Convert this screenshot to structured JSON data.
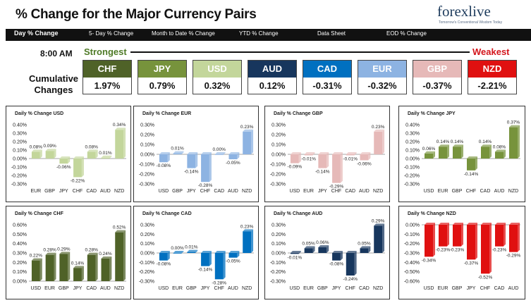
{
  "header": {
    "title": "% Change for the Major Currency Pairs",
    "logo_text": "forexlive",
    "logo_tagline": "Tomorrow's Conventional Wisdom Today"
  },
  "nav": {
    "items": [
      {
        "label": "Day % Change",
        "active": true
      },
      {
        "label": "5- Day % Change",
        "active": false
      },
      {
        "label": "Month to Date % Change",
        "active": false
      },
      {
        "label": "YTD % Change",
        "active": false
      },
      {
        "label": "Data Sheet",
        "active": false
      },
      {
        "label": "EOD % Change",
        "active": false
      }
    ]
  },
  "summary": {
    "time": "8:00 AM",
    "strongest_label": "Strongest",
    "weakest_label": "Weakest",
    "cumulative_label": "Cumulative Changes",
    "currencies": [
      {
        "code": "CHF",
        "value": "1.97%",
        "color": "#4f6228"
      },
      {
        "code": "JPY",
        "value": "0.79%",
        "color": "#77933c"
      },
      {
        "code": "USD",
        "value": "0.32%",
        "color": "#c3d69b"
      },
      {
        "code": "AUD",
        "value": "0.12%",
        "color": "#17365d"
      },
      {
        "code": "CAD",
        "value": "-0.31%",
        "color": "#0070c0"
      },
      {
        "code": "EUR",
        "value": "-0.32%",
        "color": "#8db3e2"
      },
      {
        "code": "GBP",
        "value": "-0.37%",
        "color": "#e6b9b8"
      },
      {
        "code": "NZD",
        "value": "-2.21%",
        "color": "#e01010"
      }
    ]
  },
  "chart_data": [
    {
      "type": "bar",
      "title": "Daily % Change USD",
      "categories": [
        "EUR",
        "GBP",
        "JPY",
        "CHF",
        "CAD",
        "AUD",
        "NZD"
      ],
      "values": [
        0.08,
        0.09,
        -0.06,
        -0.22,
        0.08,
        0.01,
        0.34
      ],
      "data_labels": [
        "0.08%",
        "0.09%",
        "-0.06%",
        "-0.22%",
        "0.08%",
        "0.01%",
        "0.34%"
      ],
      "ylim": [
        -0.3,
        0.4
      ],
      "yticks": [
        "0.40%",
        "0.30%",
        "0.20%",
        "0.10%",
        "0.00%",
        "-0.10%",
        "-0.20%",
        "-0.30%"
      ],
      "color": "#c3d69b"
    },
    {
      "type": "bar",
      "title": "Daily % Change EUR",
      "categories": [
        "USD",
        "GBP",
        "JPY",
        "CHF",
        "CAD",
        "AUD",
        "NZD"
      ],
      "values": [
        -0.08,
        0.01,
        -0.14,
        -0.28,
        0.0,
        -0.05,
        0.23
      ],
      "data_labels": [
        "-0.08%",
        "0.01%",
        "-0.14%",
        "-0.28%",
        "0.00%",
        "-0.05%",
        "0.23%"
      ],
      "ylim": [
        -0.3,
        0.3
      ],
      "yticks": [
        "0.30%",
        "0.20%",
        "0.10%",
        "0.00%",
        "-0.10%",
        "-0.20%",
        "-0.30%"
      ],
      "color": "#8db3e2"
    },
    {
      "type": "bar",
      "title": "Daily % Change GBP",
      "categories": [
        "USD",
        "EUR",
        "JPY",
        "CHF",
        "CAD",
        "AUD",
        "NZD"
      ],
      "values": [
        -0.09,
        -0.01,
        -0.14,
        -0.29,
        -0.01,
        -0.06,
        0.23
      ],
      "data_labels": [
        "-0.09%",
        "-0.01%",
        "-0.14%",
        "-0.29%",
        "-0.01%",
        "-0.06%",
        "0.23%"
      ],
      "ylim": [
        -0.3,
        0.3
      ],
      "yticks": [
        "0.30%",
        "0.20%",
        "0.10%",
        "0.00%",
        "-0.10%",
        "-0.20%",
        "-0.30%"
      ],
      "color": "#e6b9b8"
    },
    {
      "type": "bar",
      "title": "Daily % Change JPY",
      "categories": [
        "USD",
        "EUR",
        "GBP",
        "CHF",
        "CAD",
        "AUD",
        "NZD"
      ],
      "values": [
        0.06,
        0.14,
        0.14,
        -0.14,
        0.14,
        0.08,
        0.37
      ],
      "data_labels": [
        "0.06%",
        "0.14%",
        "0.14%",
        "-0.14%",
        "0.14%",
        "0.08%",
        "0.37%"
      ],
      "ylim": [
        -0.3,
        0.4
      ],
      "yticks": [
        "0.40%",
        "0.30%",
        "0.20%",
        "0.10%",
        "0.00%",
        "-0.10%",
        "-0.20%",
        "-0.30%"
      ],
      "color": "#77933c"
    },
    {
      "type": "bar",
      "title": "Daily % Change CHF",
      "categories": [
        "USD",
        "EUR",
        "GBP",
        "JPY",
        "CAD",
        "AUD",
        "NZD"
      ],
      "values": [
        0.22,
        0.28,
        0.29,
        0.14,
        0.28,
        0.24,
        0.52
      ],
      "data_labels": [
        "0.22%",
        "0.28%",
        "0.29%",
        "0.14%",
        "0.28%",
        "0.24%",
        "0.52%"
      ],
      "ylim": [
        0.0,
        0.6
      ],
      "yticks": [
        "0.60%",
        "0.50%",
        "0.40%",
        "0.30%",
        "0.20%",
        "0.10%",
        "0.00%"
      ],
      "color": "#4f6228"
    },
    {
      "type": "bar",
      "title": "Daily % Change CAD",
      "categories": [
        "USD",
        "EUR",
        "GBP",
        "JPY",
        "CHF",
        "AUD",
        "NZD"
      ],
      "values": [
        -0.08,
        0.0,
        0.01,
        -0.14,
        -0.28,
        -0.05,
        0.23
      ],
      "data_labels": [
        "-0.08%",
        "0.00%",
        "0.01%",
        "-0.14%",
        "-0.28%",
        "-0.05%",
        "0.23%"
      ],
      "ylim": [
        -0.3,
        0.3
      ],
      "yticks": [
        "0.30%",
        "0.20%",
        "0.10%",
        "0.00%",
        "-0.10%",
        "-0.20%",
        "-0.30%"
      ],
      "color": "#0070c0"
    },
    {
      "type": "bar",
      "title": "Daily % Change AUD",
      "categories": [
        "USD",
        "EUR",
        "GBP",
        "JPY",
        "CHF",
        "CAD",
        "NZD"
      ],
      "values": [
        -0.01,
        0.05,
        0.06,
        -0.08,
        -0.24,
        0.05,
        0.29
      ],
      "data_labels": [
        "-0.01%",
        "0.05%",
        "0.06%",
        "-0.08%",
        "-0.24%",
        "0.05%",
        "0.29%"
      ],
      "ylim": [
        -0.3,
        0.3
      ],
      "yticks": [
        "0.30%",
        "0.20%",
        "0.10%",
        "0.00%",
        "-0.10%",
        "-0.20%",
        "-0.30%"
      ],
      "color": "#17365d"
    },
    {
      "type": "bar",
      "title": "Daily % Change NZD",
      "categories": [
        "USD",
        "EUR",
        "GBP",
        "JPY",
        "CHF",
        "CAD",
        "AUD"
      ],
      "values": [
        -0.34,
        -0.23,
        -0.23,
        -0.37,
        -0.52,
        -0.23,
        -0.29
      ],
      "data_labels": [
        "-0.34%",
        "-0.23%",
        "-0.23%",
        "-0.37%",
        "-0.52%",
        "-0.23%",
        "-0.29%"
      ],
      "ylim": [
        -0.6,
        0.0
      ],
      "yticks": [
        "0.00%",
        "-0.10%",
        "-0.20%",
        "-0.30%",
        "-0.40%",
        "-0.50%",
        "-0.60%"
      ],
      "color": "#e01010"
    }
  ]
}
